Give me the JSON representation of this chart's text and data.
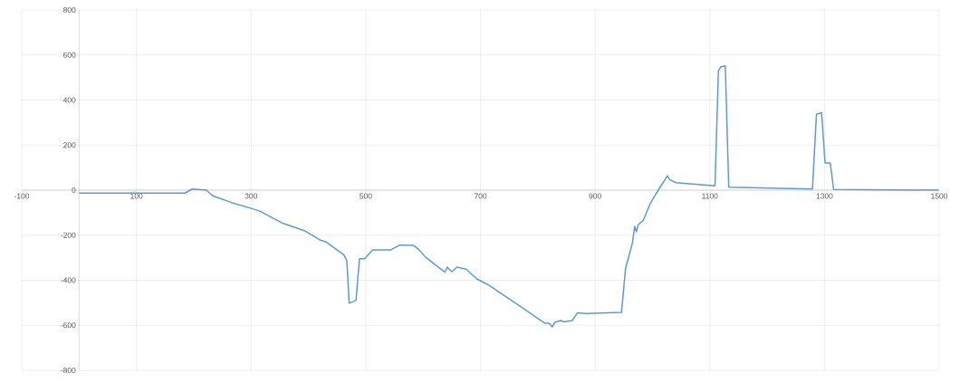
{
  "chart_data": {
    "type": "line",
    "color": "#5b9bd5",
    "grid": true,
    "xlim": [
      -100,
      1500
    ],
    "ylim": [
      -800,
      800
    ],
    "xticks": [
      -100,
      100,
      300,
      500,
      700,
      900,
      1100,
      1300,
      1500
    ],
    "yticks": [
      -800,
      -600,
      -400,
      -200,
      0,
      200,
      400,
      600,
      800
    ],
    "x": [
      0,
      185,
      197,
      222,
      233,
      267,
      299,
      315,
      356,
      394,
      420,
      430,
      462,
      467,
      471,
      478,
      483,
      489,
      498,
      512,
      544,
      559,
      583,
      593,
      604,
      638,
      642,
      650,
      659,
      675,
      694,
      712,
      746,
      773,
      812,
      820,
      825,
      830,
      840,
      846,
      860,
      869,
      883,
      946,
      953,
      965,
      969,
      972,
      975,
      984,
      996,
      1007,
      1026,
      1030,
      1041,
      1109,
      1115,
      1119,
      1127,
      1133,
      1279,
      1286,
      1295,
      1301,
      1310,
      1316,
      1499
    ],
    "values": [
      -13,
      -13,
      5,
      0,
      -25,
      -56,
      -80,
      -93,
      -148,
      -181,
      -221,
      -229,
      -288,
      -314,
      -502,
      -495,
      -489,
      -305,
      -305,
      -265,
      -265,
      -244,
      -245,
      -265,
      -297,
      -364,
      -342,
      -362,
      -342,
      -351,
      -395,
      -418,
      -476,
      -522,
      -590,
      -592,
      -607,
      -587,
      -579,
      -585,
      -579,
      -545,
      -548,
      -543,
      -348,
      -235,
      -161,
      -185,
      -154,
      -134,
      -60,
      -13,
      64,
      47,
      33,
      19,
      529,
      547,
      552,
      13,
      5,
      338,
      344,
      121,
      121,
      3,
      0
    ]
  }
}
